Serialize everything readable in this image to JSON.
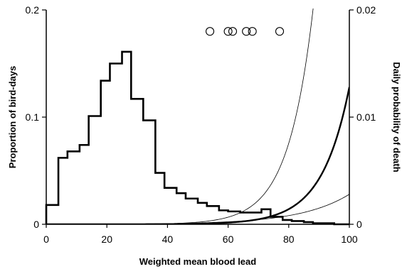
{
  "chart_data": {
    "type": "line",
    "xlabel": "Weighted mean blood lead",
    "ylabel_left": "Proportion of bird-days",
    "ylabel_right": "Daily probability of death",
    "xlim": [
      0,
      100
    ],
    "ylim_left": [
      0,
      0.2
    ],
    "ylim_right": [
      0,
      0.02
    ],
    "x_ticks": [
      "0",
      "20",
      "40",
      "60",
      "80",
      "100"
    ],
    "y_ticks_left": [
      "0",
      "0.1",
      "0.2"
    ],
    "y_ticks_right": [
      "0",
      "0.01",
      "0.02"
    ],
    "grid": false,
    "histogram": {
      "name": "",
      "axis": "left",
      "bin_edges": [
        0,
        4,
        7,
        11,
        14,
        18,
        21,
        25,
        28,
        32,
        36,
        39,
        43,
        46,
        50,
        53,
        57,
        60,
        64,
        67,
        71,
        74,
        78,
        81,
        85,
        88,
        92,
        95,
        99,
        100
      ],
      "values": [
        0.018,
        0.062,
        0.068,
        0.074,
        0.101,
        0.134,
        0.15,
        0.161,
        0.117,
        0.097,
        0.048,
        0.034,
        0.029,
        0.024,
        0.02,
        0.017,
        0.013,
        0.012,
        0.011,
        0.011,
        0.014,
        0.007,
        0.004,
        0.003,
        0.002,
        0.001,
        0.001,
        0.0,
        0.0
      ]
    },
    "curves": [
      {
        "name": "",
        "axis": "right",
        "style": "thick",
        "formula": "0.0128*exp(0.1102*(x-100))"
      },
      {
        "name": "",
        "axis": "right",
        "style": "thin",
        "formula": "0.02*exp(0.1216*(x-88))"
      },
      {
        "name": "",
        "axis": "right",
        "style": "thin",
        "formula": "0.0028*exp(0.0621*(x-100))"
      }
    ],
    "points": {
      "name": "",
      "axis": "right",
      "marker": "open-circle",
      "x": [
        54,
        60,
        61.5,
        66,
        68,
        77
      ],
      "y": [
        0.018,
        0.018,
        0.018,
        0.018,
        0.018,
        0.018
      ]
    }
  }
}
